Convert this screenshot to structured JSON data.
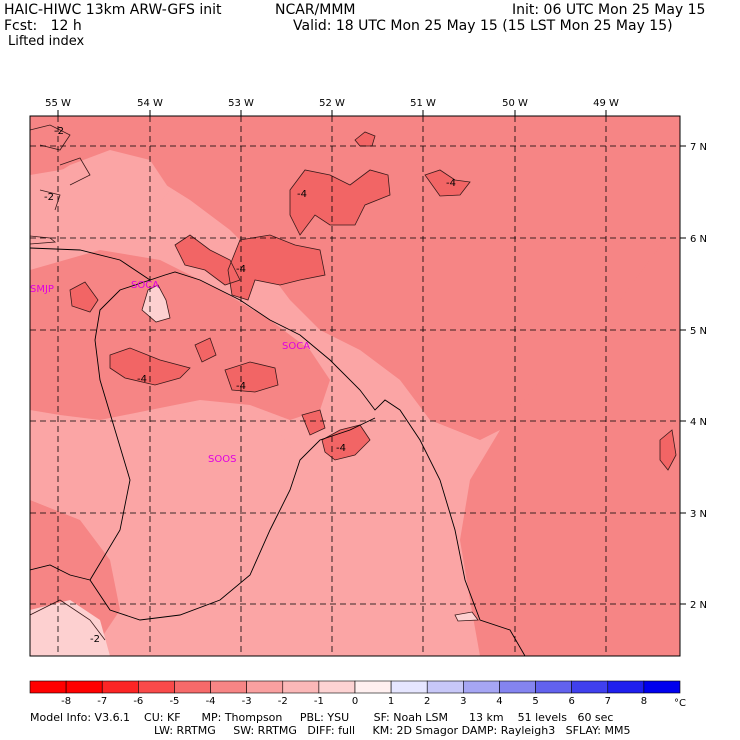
{
  "header": {
    "model_title": "HAIC-HIWC 13km ARW-GFS init",
    "org": "NCAR/MMM",
    "init": "Init: 06 UTC Mon 25 May 15",
    "fcst": "Fcst:   12 h",
    "valid": "Valid: 18 UTC Mon 25 May 15 (15 LST Mon 25 May 15)",
    "field": "Lifted index"
  },
  "map": {
    "lon_labels": [
      "55 W",
      "54 W",
      "53 W",
      "52 W",
      "51 W",
      "50 W",
      "49 W"
    ],
    "lat_labels": [
      "7 N",
      "6 N",
      "5 N",
      "4 N",
      "3 N",
      "2 N"
    ],
    "stations": [
      "SMJP",
      "SOCA",
      "SOCA",
      "SOOS"
    ],
    "contour_labels": [
      "-2",
      "-2",
      "-4",
      "-4",
      "-4",
      "-4",
      "-4",
      "-4",
      "-2"
    ],
    "colors": {
      "deep": "#f26565",
      "mid": "#f68585",
      "light": "#fba5a5",
      "pale": "#fdd0d0",
      "station": "#e000e0"
    }
  },
  "colorbar": {
    "ticks": [
      "-8",
      "-7",
      "-6",
      "-5",
      "-4",
      "-3",
      "-2",
      "-1",
      "0",
      "1",
      "2",
      "3",
      "4",
      "5",
      "6",
      "7",
      "8"
    ],
    "unit": "°C",
    "colors": [
      "#ff0000",
      "#fc2525",
      "#f94a4a",
      "#f66a6a",
      "#f78585",
      "#f9a0a0",
      "#fbb8b8",
      "#fdd3d3",
      "#fff0f0",
      "#e6e6ff",
      "#c8c8f8",
      "#a6a6f4",
      "#8484f0",
      "#6262ee",
      "#4040ee",
      "#1f1fee",
      "#0000ee"
    ]
  },
  "footer": {
    "line1": "Model Info: V3.6.1    CU: KF      MP: Thompson     PBL: YSU       SF: Noah LSM      13 km    51 levels   60 sec",
    "line2": "LW: RRTMG     SW: RRTMG   DIFF: full     KM: 2D Smagor DAMP: Rayleigh3   SFLAY: MM5"
  }
}
